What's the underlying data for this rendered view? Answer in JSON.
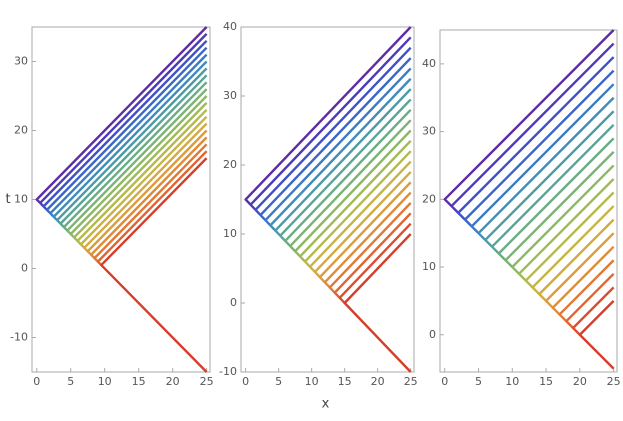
{
  "chart_data": [
    {
      "type": "line",
      "ylabel": "t",
      "xlim": [
        -0.7,
        25.5
      ],
      "ylim": [
        -15,
        35
      ],
      "xticks": [
        0,
        5,
        10,
        15,
        20,
        25
      ],
      "yticks": [
        -10,
        0,
        10,
        20,
        30
      ],
      "series": [
        {
          "color": "#5e2ca5",
          "x": [
            0.5,
            0,
            25
          ],
          "values": [
            9.5,
            10,
            35
          ]
        },
        {
          "color": "#4c3bb8",
          "x": [
            1,
            0.5,
            25
          ],
          "values": [
            9,
            9.5,
            34
          ]
        },
        {
          "color": "#3f51c4",
          "x": [
            1.5,
            1,
            25
          ],
          "values": [
            8.5,
            9,
            33
          ]
        },
        {
          "color": "#3a66c8",
          "x": [
            2,
            1.5,
            25
          ],
          "values": [
            8,
            8.5,
            32
          ]
        },
        {
          "color": "#3b7bc3",
          "x": [
            2.5,
            2,
            25
          ],
          "values": [
            7.5,
            8,
            31
          ]
        },
        {
          "color": "#418cb8",
          "x": [
            3,
            2.5,
            25
          ],
          "values": [
            7,
            7.5,
            30
          ]
        },
        {
          "color": "#4b9aa8",
          "x": [
            3.5,
            3,
            25
          ],
          "values": [
            6.5,
            7,
            29
          ]
        },
        {
          "color": "#58a596",
          "x": [
            4,
            3.5,
            25
          ],
          "values": [
            6,
            6.5,
            28
          ]
        },
        {
          "color": "#68ad83",
          "x": [
            4.5,
            4,
            25
          ],
          "values": [
            5.5,
            6,
            27
          ]
        },
        {
          "color": "#7ab372",
          "x": [
            5,
            4.5,
            25
          ],
          "values": [
            5,
            5.5,
            26
          ]
        },
        {
          "color": "#8db863",
          "x": [
            5.5,
            5,
            25
          ],
          "values": [
            4.5,
            5,
            25
          ]
        },
        {
          "color": "#a1ba57",
          "x": [
            6,
            5.5,
            25
          ],
          "values": [
            4,
            4.5,
            24
          ]
        },
        {
          "color": "#b5b94e",
          "x": [
            6.5,
            6,
            25
          ],
          "values": [
            3.5,
            4,
            23
          ]
        },
        {
          "color": "#c6b447",
          "x": [
            7,
            6.5,
            25
          ],
          "values": [
            3,
            3.5,
            22
          ]
        },
        {
          "color": "#d3aa41",
          "x": [
            7.5,
            7,
            25
          ],
          "values": [
            2.5,
            3,
            21
          ]
        },
        {
          "color": "#dc9c3c",
          "x": [
            8,
            7.5,
            25
          ],
          "values": [
            2,
            2.5,
            20
          ]
        },
        {
          "color": "#e08b38",
          "x": [
            8.5,
            8,
            25
          ],
          "values": [
            1.5,
            2,
            19
          ]
        },
        {
          "color": "#e17834",
          "x": [
            9,
            8.5,
            25
          ],
          "values": [
            1,
            1.5,
            18
          ]
        },
        {
          "color": "#df6431",
          "x": [
            9.5,
            9,
            25
          ],
          "values": [
            0.5,
            1,
            17
          ]
        },
        {
          "color": "#d63d2b",
          "x": [
            25,
            9.5,
            25
          ],
          "values": [
            -15,
            0.5,
            16
          ]
        }
      ]
    },
    {
      "type": "line",
      "xlabel": "x",
      "xlim": [
        -0.7,
        25.5
      ],
      "ylim": [
        -10,
        40
      ],
      "xticks": [
        0,
        5,
        10,
        15,
        20,
        25
      ],
      "yticks": [
        -10,
        0,
        10,
        20,
        30,
        40
      ],
      "series": [
        {
          "color": "#5e2ca5",
          "x": [
            0.75,
            0,
            25
          ],
          "values": [
            14.25,
            15,
            40
          ]
        },
        {
          "color": "#4c3bb8",
          "x": [
            1.5,
            0.75,
            25
          ],
          "values": [
            13.5,
            14.25,
            38.5
          ]
        },
        {
          "color": "#3f51c4",
          "x": [
            2.25,
            1.5,
            25
          ],
          "values": [
            12.75,
            13.5,
            37
          ]
        },
        {
          "color": "#3a66c8",
          "x": [
            3,
            2.25,
            25
          ],
          "values": [
            12,
            12.75,
            35.5
          ]
        },
        {
          "color": "#3b7bc3",
          "x": [
            3.75,
            3,
            25
          ],
          "values": [
            11.25,
            12,
            34
          ]
        },
        {
          "color": "#418cb8",
          "x": [
            4.5,
            3.75,
            25
          ],
          "values": [
            10.5,
            11.25,
            32.5
          ]
        },
        {
          "color": "#4b9aa8",
          "x": [
            5.25,
            4.5,
            25
          ],
          "values": [
            9.75,
            10.5,
            31
          ]
        },
        {
          "color": "#58a596",
          "x": [
            6,
            5.25,
            25
          ],
          "values": [
            9,
            9.75,
            29.5
          ]
        },
        {
          "color": "#68ad83",
          "x": [
            6.75,
            6,
            25
          ],
          "values": [
            8.25,
            9,
            28
          ]
        },
        {
          "color": "#7ab372",
          "x": [
            7.5,
            6.75,
            25
          ],
          "values": [
            7.5,
            8.25,
            26.5
          ]
        },
        {
          "color": "#8db863",
          "x": [
            8.25,
            7.5,
            25
          ],
          "values": [
            6.75,
            7.5,
            25
          ]
        },
        {
          "color": "#a1ba57",
          "x": [
            9,
            8.25,
            25
          ],
          "values": [
            6,
            6.75,
            23.5
          ]
        },
        {
          "color": "#b5b94e",
          "x": [
            9.75,
            9,
            25
          ],
          "values": [
            5.25,
            6,
            22
          ]
        },
        {
          "color": "#c6b447",
          "x": [
            10.5,
            9.75,
            25
          ],
          "values": [
            4.5,
            5.25,
            20.5
          ]
        },
        {
          "color": "#d3aa41",
          "x": [
            11.25,
            10.5,
            25
          ],
          "values": [
            3.75,
            4.5,
            19
          ]
        },
        {
          "color": "#dc9c3c",
          "x": [
            12,
            11.25,
            25
          ],
          "values": [
            3,
            3.75,
            17.5
          ]
        },
        {
          "color": "#e08b38",
          "x": [
            12.75,
            12,
            25
          ],
          "values": [
            2.25,
            3,
            16
          ]
        },
        {
          "color": "#e17834",
          "x": [
            13.5,
            12.75,
            25
          ],
          "values": [
            1.5,
            2.25,
            14.5
          ]
        },
        {
          "color": "#df6431",
          "x": [
            14.25,
            13.5,
            25
          ],
          "values": [
            0.75,
            1.5,
            13
          ]
        },
        {
          "color": "#db4f2e",
          "x": [
            15,
            14.25,
            25
          ],
          "values": [
            0,
            0.75,
            11.5
          ]
        },
        {
          "color": "#d63d2b",
          "x": [
            25,
            15,
            25
          ],
          "values": [
            -10,
            0,
            10
          ]
        }
      ]
    },
    {
      "type": "line",
      "xlim": [
        -0.7,
        25.5
      ],
      "ylim": [
        -5.5,
        45
      ],
      "xticks": [
        0,
        5,
        10,
        15,
        20,
        25
      ],
      "yticks": [
        0,
        10,
        20,
        30,
        40
      ],
      "series": [
        {
          "color": "#5e2ca5",
          "x": [
            1,
            0,
            25
          ],
          "values": [
            19,
            20,
            45
          ]
        },
        {
          "color": "#4c3bb8",
          "x": [
            2,
            1,
            25
          ],
          "values": [
            18,
            19,
            43
          ]
        },
        {
          "color": "#3f51c4",
          "x": [
            3,
            2,
            25
          ],
          "values": [
            17,
            18,
            41
          ]
        },
        {
          "color": "#3a66c8",
          "x": [
            4,
            3,
            25
          ],
          "values": [
            16,
            17,
            39
          ]
        },
        {
          "color": "#3b7bc3",
          "x": [
            5,
            4,
            25
          ],
          "values": [
            15,
            16,
            37
          ]
        },
        {
          "color": "#418cb8",
          "x": [
            6,
            5,
            25
          ],
          "values": [
            14,
            15,
            35
          ]
        },
        {
          "color": "#4b9aa8",
          "x": [
            7,
            6,
            25
          ],
          "values": [
            13,
            14,
            33
          ]
        },
        {
          "color": "#58a596",
          "x": [
            8,
            7,
            25
          ],
          "values": [
            12,
            13,
            31
          ]
        },
        {
          "color": "#68ad83",
          "x": [
            9,
            8,
            25
          ],
          "values": [
            11,
            12,
            29
          ]
        },
        {
          "color": "#7ab372",
          "x": [
            10,
            9,
            25
          ],
          "values": [
            10,
            11,
            27
          ]
        },
        {
          "color": "#8db863",
          "x": [
            11,
            10,
            25
          ],
          "values": [
            9,
            10,
            25
          ]
        },
        {
          "color": "#a1ba57",
          "x": [
            12,
            11,
            25
          ],
          "values": [
            8,
            9,
            23
          ]
        },
        {
          "color": "#b5b94e",
          "x": [
            13,
            12,
            25
          ],
          "values": [
            7,
            8,
            21
          ]
        },
        {
          "color": "#c6b447",
          "x": [
            14,
            13,
            25
          ],
          "values": [
            6,
            7,
            19
          ]
        },
        {
          "color": "#d3aa41",
          "x": [
            15,
            14,
            25
          ],
          "values": [
            5,
            6,
            17
          ]
        },
        {
          "color": "#dc9c3c",
          "x": [
            16,
            15,
            25
          ],
          "values": [
            4,
            5,
            15
          ]
        },
        {
          "color": "#e08b38",
          "x": [
            17,
            16,
            25
          ],
          "values": [
            3,
            4,
            13
          ]
        },
        {
          "color": "#e17834",
          "x": [
            18,
            17,
            25
          ],
          "values": [
            2,
            3,
            11
          ]
        },
        {
          "color": "#df6431",
          "x": [
            19,
            18,
            25
          ],
          "values": [
            1,
            2,
            9
          ]
        },
        {
          "color": "#db4f2e",
          "x": [
            20,
            19,
            25
          ],
          "values": [
            0,
            1,
            7
          ]
        },
        {
          "color": "#d63d2b",
          "x": [
            25,
            20,
            25
          ],
          "values": [
            -5,
            0,
            5
          ]
        }
      ]
    }
  ]
}
